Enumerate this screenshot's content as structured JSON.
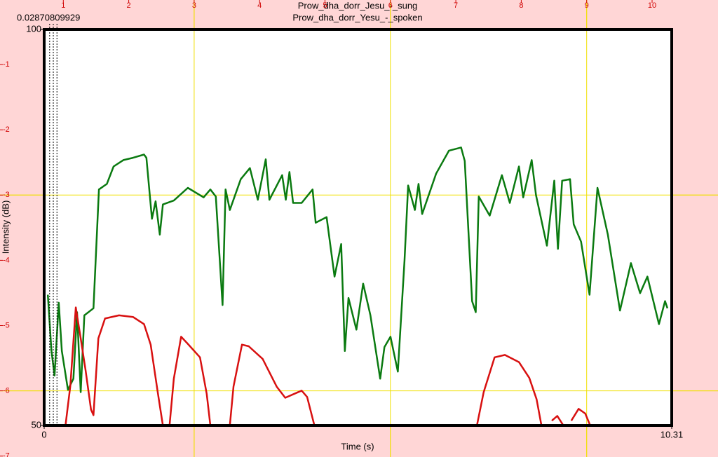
{
  "chart_data": {
    "type": "line",
    "title": "Prow_dha_dorr_Jesu_-_sung",
    "subtitle": "Prow_dha_dorr_Yesu_-_spoken",
    "xlabel": "Time (s)",
    "ylabel": "Intensity (dB)",
    "xlim": [
      0,
      10.31
    ],
    "xticks": [
      0,
      10.31
    ],
    "ylim": [
      50,
      100
    ],
    "yticks": [
      50,
      100
    ],
    "cursor": {
      "label": "0.02870809929",
      "x": [
        0.09,
        0.15,
        0.21
      ]
    },
    "overlay": {
      "color": "#d00000",
      "grid_color": "#f0e000",
      "xticks": [
        1,
        2,
        3,
        4,
        5,
        6,
        7,
        8,
        9,
        10
      ],
      "yticks": [
        -1,
        -2,
        -3,
        -4,
        -5,
        -6,
        -7
      ],
      "grid_x": [
        3,
        6,
        9
      ],
      "grid_y": [
        -3,
        -6
      ]
    },
    "series": [
      {
        "color": "#0a7a10",
        "x": [
          0.06,
          0.12,
          0.17,
          0.24,
          0.29,
          0.39,
          0.48,
          0.54,
          0.6,
          0.66,
          0.81,
          0.9,
          1.03,
          1.14,
          1.3,
          1.46,
          1.64,
          1.68,
          1.77,
          1.83,
          1.9,
          1.95,
          2.13,
          2.36,
          2.62,
          2.73,
          2.82,
          2.93,
          2.98,
          3.05,
          3.23,
          3.38,
          3.51,
          3.64,
          3.7,
          3.91,
          3.97,
          4.03,
          4.09,
          4.23,
          4.41,
          4.46,
          4.64,
          4.77,
          4.88,
          4.94,
          5.0,
          5.13,
          5.24,
          5.36,
          5.52,
          5.59,
          5.69,
          5.81,
          5.92,
          5.98,
          6.09,
          6.15,
          6.21,
          6.44,
          6.65,
          6.85,
          6.91,
          7.03,
          7.09,
          7.14,
          7.32,
          7.52,
          7.65,
          7.8,
          7.87,
          8.01,
          8.08,
          8.26,
          8.38,
          8.44,
          8.51,
          8.64,
          8.7,
          8.82,
          8.96,
          9.09,
          9.26,
          9.46,
          9.64,
          9.79,
          9.91,
          10.1,
          10.2,
          10.24
        ],
        "values": [
          66.5,
          59.4,
          56.3,
          65.5,
          59.4,
          54.5,
          55.9,
          64.3,
          54.2,
          63.9,
          64.8,
          79.8,
          80.5,
          82.7,
          83.5,
          83.8,
          84.2,
          83.8,
          76.1,
          78.3,
          74.1,
          77.9,
          78.4,
          80.0,
          78.8,
          79.8,
          78.9,
          65.2,
          79.8,
          77.2,
          81.1,
          82.5,
          78.5,
          83.6,
          78.5,
          81.6,
          78.5,
          82.0,
          78.1,
          78.1,
          79.8,
          75.6,
          76.3,
          68.8,
          72.9,
          59.4,
          66.1,
          62.1,
          67.9,
          63.9,
          55.9,
          59.9,
          61.2,
          56.8,
          70.8,
          80.3,
          77.2,
          80.5,
          76.7,
          81.8,
          84.7,
          85.1,
          83.4,
          65.7,
          64.3,
          78.9,
          76.5,
          81.6,
          78.1,
          82.7,
          78.8,
          83.5,
          79.1,
          72.7,
          80.9,
          72.3,
          80.9,
          81.1,
          75.4,
          73.2,
          66.5,
          80.0,
          74.1,
          64.5,
          70.5,
          66.7,
          68.8,
          62.8,
          65.7,
          64.8
        ]
      },
      {
        "color": "#d81010",
        "x": [
          0.35,
          0.43,
          0.52,
          0.6,
          0.68,
          0.77,
          0.81,
          0.89,
          1.0,
          1.23,
          1.46,
          1.64,
          1.75,
          1.87,
          1.95,
          2.0,
          2.06,
          2.13,
          2.25,
          2.36,
          2.56,
          2.67,
          2.73,
          3.0,
          3.05,
          3.11,
          3.25,
          3.36,
          3.59,
          3.82,
          3.96,
          4.11,
          4.23,
          4.32,
          4.44,
          5.5,
          7.11,
          7.22,
          7.4,
          7.57,
          7.8,
          7.97,
          8.09,
          8.17,
          8.25,
          8.34,
          8.43,
          8.53,
          8.6,
          8.66,
          8.78,
          8.89,
          8.97
        ],
        "values": [
          50.0,
          55.0,
          64.9,
          61.0,
          57.0,
          52.0,
          51.3,
          61.0,
          63.5,
          63.9,
          63.7,
          62.8,
          60.2,
          54.0,
          50.0,
          null,
          50.0,
          55.9,
          61.2,
          60.3,
          58.6,
          54.0,
          50.0,
          null,
          50.0,
          54.9,
          60.2,
          60.0,
          58.4,
          54.9,
          53.5,
          54.0,
          54.4,
          53.6,
          50.0,
          null,
          50.0,
          54.2,
          58.6,
          58.9,
          58.0,
          56.0,
          53.3,
          50.0,
          null,
          50.6,
          51.2,
          50.0,
          null,
          50.6,
          52.1,
          51.5,
          50.0
        ]
      }
    ]
  }
}
